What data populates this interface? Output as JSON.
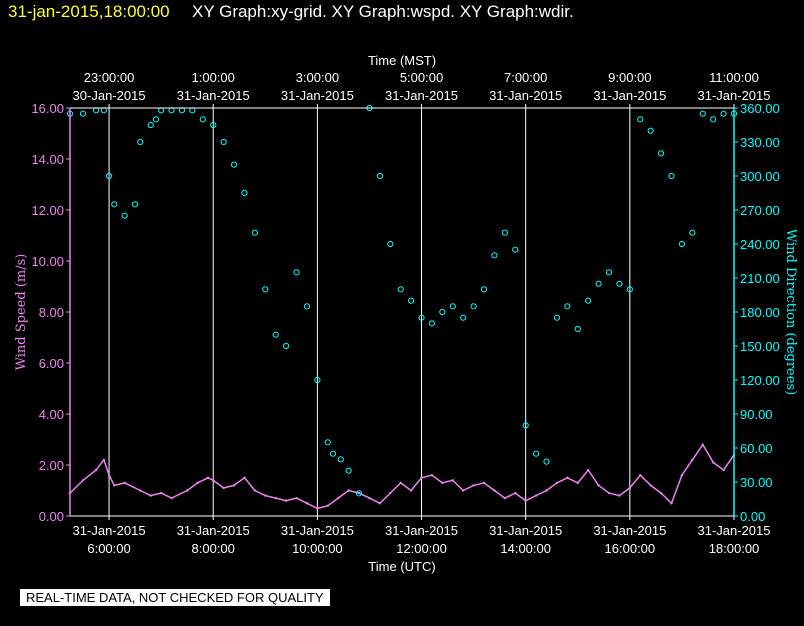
{
  "header": {
    "datetime": "31-jan-2015,18:00:00",
    "title": "XY Graph:xy-grid.  XY Graph:wspd.  XY Graph:wdir."
  },
  "footer_note": "REAL-TIME DATA, NOT CHECKED FOR QUALITY",
  "colors": {
    "background": "#000000",
    "header_date": "#ffff33",
    "wind_speed": "#ee82ee",
    "wind_direction": "#00ffff",
    "grid": "#ffffff"
  },
  "chart_data": {
    "type": "line",
    "title": "",
    "top_axis": {
      "label": "Time (MST)",
      "ticks": [
        {
          "time": "23:00:00",
          "date": "30-Jan-2015"
        },
        {
          "time": "1:00:00",
          "date": "31-Jan-2015"
        },
        {
          "time": "3:00:00",
          "date": "31-Jan-2015"
        },
        {
          "time": "5:00:00",
          "date": "31-Jan-2015"
        },
        {
          "time": "7:00:00",
          "date": "31-Jan-2015"
        },
        {
          "time": "9:00:00",
          "date": "31-Jan-2015"
        },
        {
          "time": "11:00:00",
          "date": "31-Jan-2015"
        }
      ]
    },
    "bottom_axis": {
      "label": "Time (UTC)",
      "ticks": [
        {
          "date": "31-Jan-2015",
          "time": "6:00:00"
        },
        {
          "date": "31-Jan-2015",
          "time": "8:00:00"
        },
        {
          "date": "31-Jan-2015",
          "time": "10:00:00"
        },
        {
          "date": "31-Jan-2015",
          "time": "12:00:00"
        },
        {
          "date": "31-Jan-2015",
          "time": "14:00:00"
        },
        {
          "date": "31-Jan-2015",
          "time": "16:00:00"
        },
        {
          "date": "31-Jan-2015",
          "time": "18:00:00"
        }
      ]
    },
    "xlim_utc_hours": [
      5.25,
      18.0
    ],
    "gridlines_utc_hours": [
      6,
      8,
      10,
      12,
      14,
      16,
      18
    ],
    "left_axis": {
      "label": "Wind Speed (m/s)",
      "ylim": [
        0,
        16
      ],
      "ticks": [
        "0.00",
        "2.00",
        "4.00",
        "6.00",
        "8.00",
        "10.00",
        "12.00",
        "14.00",
        "16.00"
      ]
    },
    "right_axis": {
      "label": "Wind Direction (degrees)",
      "ylim": [
        0,
        360
      ],
      "ticks": [
        "0.00",
        "30.00",
        "60.00",
        "90.00",
        "120.00",
        "150.00",
        "180.00",
        "210.00",
        "240.00",
        "270.00",
        "300.00",
        "330.00",
        "360.00"
      ]
    },
    "series": [
      {
        "name": "wspd",
        "axis": "left",
        "style": "line",
        "x_utc_hours": [
          5.25,
          5.5,
          5.75,
          5.9,
          6.0,
          6.1,
          6.3,
          6.6,
          6.8,
          7.0,
          7.2,
          7.5,
          7.7,
          7.9,
          8.0,
          8.2,
          8.4,
          8.6,
          8.8,
          9.0,
          9.2,
          9.4,
          9.6,
          9.8,
          10.0,
          10.2,
          10.4,
          10.6,
          10.8,
          11.0,
          11.2,
          11.4,
          11.6,
          11.8,
          12.0,
          12.2,
          12.4,
          12.6,
          12.8,
          13.0,
          13.2,
          13.4,
          13.6,
          13.8,
          14.0,
          14.2,
          14.4,
          14.6,
          14.8,
          15.0,
          15.2,
          15.4,
          15.6,
          15.8,
          16.0,
          16.2,
          16.4,
          16.6,
          16.8,
          17.0,
          17.2,
          17.4,
          17.6,
          17.8,
          18.0
        ],
        "values": [
          0.9,
          1.4,
          1.8,
          2.2,
          1.6,
          1.2,
          1.3,
          1.0,
          0.8,
          0.9,
          0.7,
          1.0,
          1.3,
          1.5,
          1.4,
          1.1,
          1.2,
          1.5,
          1.0,
          0.8,
          0.7,
          0.6,
          0.7,
          0.5,
          0.3,
          0.4,
          0.7,
          1.0,
          0.9,
          0.7,
          0.5,
          0.9,
          1.3,
          1.0,
          1.5,
          1.6,
          1.3,
          1.4,
          1.0,
          1.2,
          1.3,
          1.0,
          0.7,
          0.9,
          0.6,
          0.8,
          1.0,
          1.3,
          1.5,
          1.3,
          1.8,
          1.2,
          0.9,
          0.8,
          1.1,
          1.6,
          1.2,
          0.9,
          0.5,
          1.6,
          2.2,
          2.8,
          2.1,
          1.8,
          2.4
        ]
      },
      {
        "name": "wdir",
        "axis": "right",
        "style": "circles",
        "x_utc_hours": [
          5.25,
          5.5,
          5.75,
          5.9,
          6.0,
          6.1,
          6.3,
          6.5,
          6.6,
          6.8,
          6.9,
          7.0,
          7.2,
          7.4,
          7.6,
          7.8,
          8.0,
          8.2,
          8.4,
          8.6,
          8.8,
          9.0,
          9.2,
          9.4,
          9.6,
          9.8,
          10.0,
          10.2,
          10.3,
          10.45,
          10.6,
          10.8,
          11.0,
          11.2,
          11.4,
          11.6,
          11.8,
          12.0,
          12.2,
          12.4,
          12.6,
          12.8,
          13.0,
          13.2,
          13.4,
          13.6,
          13.8,
          14.0,
          14.2,
          14.4,
          14.6,
          14.8,
          15.0,
          15.2,
          15.4,
          15.6,
          15.8,
          16.0,
          16.2,
          16.4,
          16.6,
          16.8,
          17.0,
          17.2,
          17.4,
          17.6,
          17.8,
          18.0
        ],
        "values": [
          355,
          355,
          358,
          358,
          300,
          275,
          265,
          275,
          330,
          345,
          350,
          358,
          358,
          358,
          358,
          350,
          345,
          330,
          310,
          285,
          250,
          200,
          160,
          150,
          215,
          185,
          120,
          65,
          55,
          50,
          40,
          20,
          360,
          300,
          240,
          200,
          190,
          175,
          170,
          180,
          185,
          175,
          185,
          200,
          230,
          250,
          235,
          80,
          55,
          48,
          175,
          185,
          165,
          190,
          205,
          215,
          205,
          200,
          350,
          340,
          320,
          300,
          240,
          250,
          355,
          350,
          355,
          355
        ]
      }
    ]
  }
}
